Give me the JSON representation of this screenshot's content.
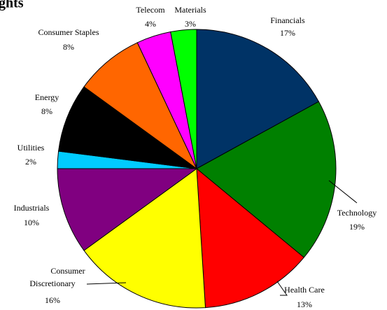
{
  "chart_data": {
    "type": "pie",
    "title": "ghts",
    "categories": [
      "Financials",
      "Technology",
      "Health Care",
      "Consumer Discretionary",
      "Industrials",
      "Utilities",
      "Energy",
      "Consumer Staples",
      "Telecom",
      "Materials"
    ],
    "values": [
      17,
      19,
      13,
      16,
      10,
      2,
      8,
      8,
      4,
      3
    ],
    "value_labels": [
      "17%",
      "19%",
      "13%",
      "16%",
      "10%",
      "2%",
      "8%",
      "8%",
      "4%",
      "3%"
    ],
    "colors": [
      "#003366",
      "#008000",
      "#ff0000",
      "#ffff00",
      "#800080",
      "#00ccff",
      "#000000",
      "#ff6600",
      "#ff00ff",
      "#00ff00"
    ]
  }
}
